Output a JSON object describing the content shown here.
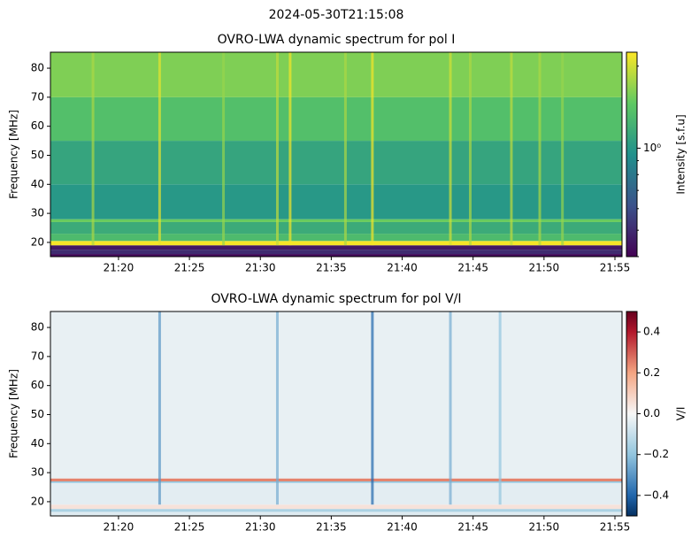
{
  "title": "2024-05-30T21:15:08",
  "chart_data": [
    {
      "type": "heatmap",
      "title": "OVRO-LWA dynamic spectrum for pol I",
      "ylabel": "Frequency [MHz]",
      "xlim": [
        15.2,
        55.5
      ],
      "xticks": [
        {
          "value": 20,
          "label": "21:20"
        },
        {
          "value": 25,
          "label": "21:25"
        },
        {
          "value": 30,
          "label": "21:30"
        },
        {
          "value": 35,
          "label": "21:35"
        },
        {
          "value": 40,
          "label": "21:40"
        },
        {
          "value": 45,
          "label": "21:45"
        },
        {
          "value": 50,
          "label": "21:50"
        },
        {
          "value": 55,
          "label": "21:55"
        }
      ],
      "ylim": [
        15.1,
        85.5
      ],
      "yticks": [
        20,
        30,
        40,
        50,
        60,
        70,
        80
      ],
      "y": [
        15.1,
        16,
        17.5,
        19,
        20.5,
        23,
        27,
        28,
        40,
        55,
        70,
        85.5
      ],
      "values": [
        0.42,
        0.5,
        0.45,
        2.2,
        1.3,
        1.15,
        1.5,
        1.0,
        1.1,
        1.35,
        1.6
      ],
      "bursts": {
        "x": [
          18.2,
          22.9,
          27.4,
          31.2,
          32.1,
          36.0,
          37.9,
          43.4,
          44.8,
          47.7,
          49.7,
          51.3
        ],
        "values": [
          1.8,
          2.1,
          1.7,
          1.9,
          2.2,
          1.8,
          2.2,
          2.0,
          1.8,
          1.9,
          1.8,
          1.7
        ]
      },
      "colorbar": {
        "label": "Intensity [s.f.u]",
        "colormap": "viridis",
        "scale": "log",
        "lim": [
          0.4,
          2.25
        ],
        "ticks": [
          {
            "value": 1,
            "label": "10⁰"
          }
        ],
        "minor_ticks": [
          0.4,
          0.5,
          0.6,
          0.7,
          0.8,
          0.9,
          2
        ]
      }
    },
    {
      "type": "heatmap",
      "title": "OVRO-LWA dynamic spectrum for pol V/I",
      "ylabel": "Frequency [MHz]",
      "xlim": [
        15.2,
        55.5
      ],
      "xticks": [
        {
          "value": 20,
          "label": "21:20"
        },
        {
          "value": 25,
          "label": "21:25"
        },
        {
          "value": 30,
          "label": "21:30"
        },
        {
          "value": 35,
          "label": "21:35"
        },
        {
          "value": 40,
          "label": "21:40"
        },
        {
          "value": 45,
          "label": "21:45"
        },
        {
          "value": 50,
          "label": "21:50"
        },
        {
          "value": 55,
          "label": "21:55"
        }
      ],
      "ylim": [
        15.1,
        85.5
      ],
      "yticks": [
        20,
        30,
        40,
        50,
        60,
        70,
        80
      ],
      "y": [
        15.1,
        16.5,
        17.5,
        19,
        26.5,
        27,
        28,
        85.5
      ],
      "values": [
        -0.05,
        -0.15,
        0.05,
        -0.04,
        -0.2,
        0.25,
        -0.03
      ],
      "bursts": {
        "x": [
          22.9,
          31.2,
          37.9,
          43.4,
          46.9
        ],
        "values": [
          -0.3,
          -0.25,
          -0.4,
          -0.25,
          -0.2
        ]
      },
      "colorbar": {
        "label": "V/I",
        "colormap": "RdBu_r",
        "scale": "linear",
        "lim": [
          -0.5,
          0.5
        ],
        "ticks": [
          {
            "value": -0.4,
            "label": "−0.4"
          },
          {
            "value": -0.2,
            "label": "−0.2"
          },
          {
            "value": 0,
            "label": "0.0"
          },
          {
            "value": 0.2,
            "label": "0.2"
          },
          {
            "value": 0.4,
            "label": "0.4"
          }
        ],
        "minor_ticks": []
      }
    }
  ]
}
